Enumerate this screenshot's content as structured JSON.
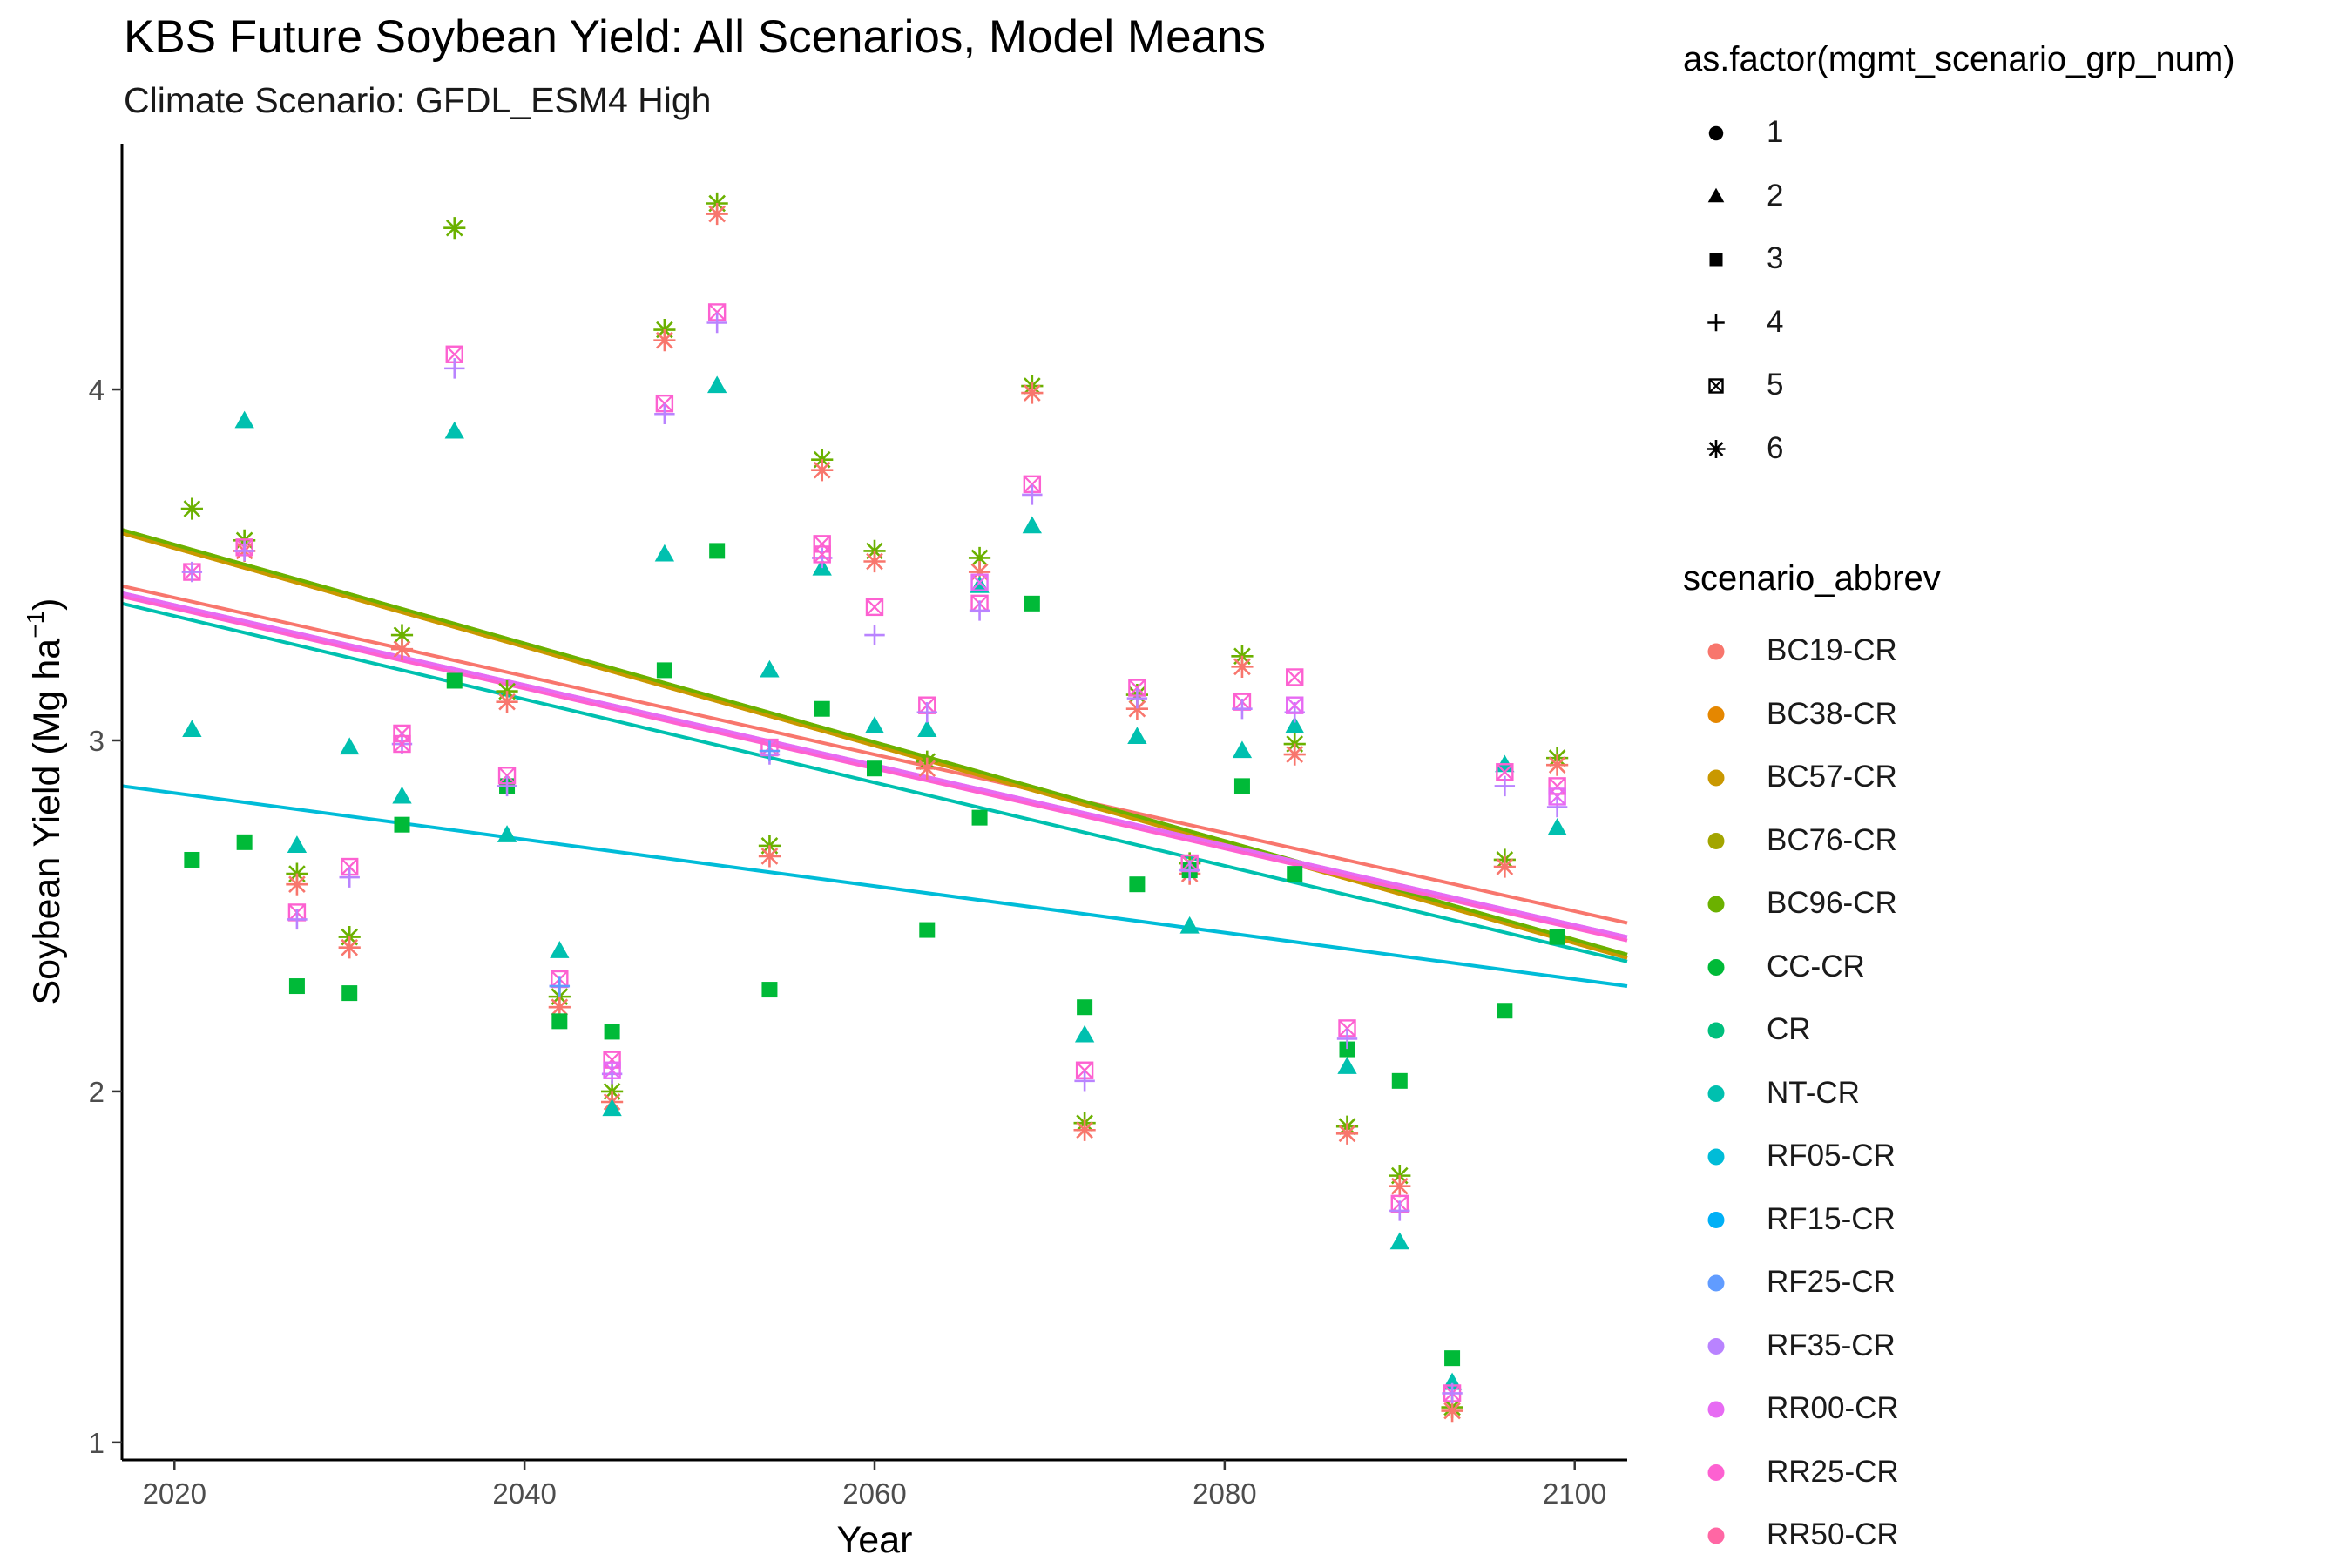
{
  "chart_data": {
    "type": "scatter",
    "title": "KBS  Future Soybean Yield: All Scenarios, Model Means",
    "subtitle": "Climate Scenario: GFDL_ESM4 High",
    "xlabel": "Year",
    "ylabel": "Soybean Yield (Mg ha",
    "ylabel_sup": "−1",
    "ylabel_close": ")",
    "xlim": [
      2017,
      2103
    ],
    "ylim": [
      0.95,
      4.7
    ],
    "xticks": [
      2020,
      2040,
      2060,
      2080,
      2100
    ],
    "yticks": [
      1,
      2,
      3,
      4
    ],
    "grid": false,
    "legend_position": "right",
    "shape_legend": {
      "title": "as.factor(mgmt_scenario_grp_num)",
      "items": [
        {
          "label": "1",
          "shape": "circle"
        },
        {
          "label": "2",
          "shape": "triangle"
        },
        {
          "label": "3",
          "shape": "square"
        },
        {
          "label": "4",
          "shape": "plus"
        },
        {
          "label": "5",
          "shape": "boxtimes"
        },
        {
          "label": "6",
          "shape": "asterisk"
        }
      ]
    },
    "color_legend": {
      "title": "scenario_abbrev",
      "items": [
        {
          "label": "BC19-CR",
          "color": "#F8766D"
        },
        {
          "label": "BC38-CR",
          "color": "#E58700"
        },
        {
          "label": "BC57-CR",
          "color": "#C99800"
        },
        {
          "label": "BC76-CR",
          "color": "#A3A500"
        },
        {
          "label": "BC96-CR",
          "color": "#6BB100"
        },
        {
          "label": "CC-CR",
          "color": "#00BA38"
        },
        {
          "label": "CR",
          "color": "#00BF7D"
        },
        {
          "label": "NT-CR",
          "color": "#00C0AF"
        },
        {
          "label": "RF05-CR",
          "color": "#00BCD8"
        },
        {
          "label": "RF15-CR",
          "color": "#00B0F6"
        },
        {
          "label": "RF25-CR",
          "color": "#619CFF"
        },
        {
          "label": "RF35-CR",
          "color": "#B983FF"
        },
        {
          "label": "RR00-CR",
          "color": "#E76BF3"
        },
        {
          "label": "RR25-CR",
          "color": "#FD61D1"
        },
        {
          "label": "RR50-CR",
          "color": "#FF67A4"
        }
      ]
    },
    "trend_lines": [
      {
        "scenario": "BC19-CR",
        "color": "#F8766D",
        "y_start": 3.44,
        "y_end": 2.48
      },
      {
        "scenario": "BC38-CR",
        "color": "#E58700",
        "y_start": 3.59,
        "y_end": 2.38
      },
      {
        "scenario": "BC57-CR",
        "color": "#C99800",
        "y_start": 3.59,
        "y_end": 2.38
      },
      {
        "scenario": "BC76-CR",
        "color": "#A3A500",
        "y_start": 3.6,
        "y_end": 2.39
      },
      {
        "scenario": "BC96-CR",
        "color": "#6BB100",
        "y_start": 3.6,
        "y_end": 2.39
      },
      {
        "scenario": "NT-CR",
        "color": "#00C0AF",
        "y_start": 3.39,
        "y_end": 2.37
      },
      {
        "scenario": "RF05-CR",
        "color": "#00BCD8",
        "y_start": 2.87,
        "y_end": 2.3
      },
      {
        "scenario": "RF35-CR",
        "color": "#B983FF",
        "y_start": 3.42,
        "y_end": 2.44
      },
      {
        "scenario": "RR00-CR",
        "color": "#E76BF3",
        "y_start": 3.42,
        "y_end": 2.44
      },
      {
        "scenario": "RR25-CR",
        "color": "#FD61D1",
        "y_start": 3.41,
        "y_end": 2.43
      }
    ],
    "trend_x": [
      2017,
      2103
    ],
    "years": [
      2021,
      2024,
      2027,
      2030,
      2033,
      2036,
      2039,
      2042,
      2045,
      2048,
      2051,
      2054,
      2057,
      2060,
      2063,
      2066,
      2069,
      2072,
      2075,
      2078,
      2081,
      2084,
      2087,
      2090,
      2093,
      2096,
      2099
    ],
    "series": [
      {
        "name": "BC96-CR",
        "scenario": "BC96-CR",
        "shape": "asterisk",
        "color": "#6BB100",
        "values": [
          3.66,
          3.57,
          2.62,
          2.44,
          3.3,
          4.46,
          3.14,
          2.27,
          2.0,
          4.17,
          4.53,
          2.7,
          3.8,
          3.54,
          2.94,
          3.52,
          4.01,
          1.91,
          3.13,
          2.65,
          3.24,
          2.99,
          1.9,
          1.76,
          1.1,
          2.66,
          2.95
        ]
      },
      {
        "name": "BC19-CR",
        "scenario": "BC19-CR",
        "shape": "asterisk",
        "color": "#F8766D",
        "values": [
          null,
          3.54,
          2.59,
          2.41,
          3.26,
          null,
          3.11,
          2.24,
          1.97,
          4.14,
          4.5,
          2.67,
          3.77,
          3.51,
          2.92,
          3.48,
          3.99,
          1.89,
          3.09,
          2.62,
          3.21,
          2.96,
          1.88,
          1.73,
          1.09,
          2.64,
          2.93
        ]
      },
      {
        "name": "NT-CR",
        "scenario": "NT-CR",
        "shape": "triangle",
        "color": "#00C0AF",
        "values": [
          3.03,
          3.91,
          2.7,
          2.98,
          2.84,
          3.88,
          2.73,
          2.4,
          1.95,
          3.53,
          4.01,
          3.2,
          3.49,
          3.04,
          3.03,
          3.44,
          3.61,
          2.16,
          3.01,
          2.47,
          2.97,
          3.04,
          2.07,
          1.57,
          1.17,
          2.93,
          2.75
        ]
      },
      {
        "name": "CC-CR",
        "scenario": "CC-CR",
        "shape": "square",
        "color": "#00BA38",
        "values": [
          2.66,
          2.71,
          2.3,
          2.28,
          2.76,
          3.17,
          2.87,
          2.2,
          2.17,
          3.2,
          3.54,
          2.29,
          3.09,
          2.92,
          2.46,
          2.78,
          3.39,
          2.24,
          2.59,
          2.63,
          2.87,
          2.62,
          2.12,
          2.03,
          1.24,
          2.23,
          2.44
        ]
      },
      {
        "name": "RR25-CR",
        "scenario": "RR25-CR",
        "shape": "boxtimes",
        "color": "#FD61D1",
        "values": [
          3.48,
          3.55,
          2.51,
          2.64,
          3.02,
          4.1,
          2.9,
          2.32,
          2.09,
          3.96,
          4.22,
          2.98,
          3.56,
          3.38,
          3.1,
          3.39,
          3.73,
          2.06,
          3.15,
          2.65,
          3.11,
          3.18,
          2.18,
          1.68,
          1.14,
          2.91,
          2.87
        ]
      },
      {
        "name": "RF35-CR",
        "scenario": "RF35-CR",
        "shape": "plus",
        "color": "#B983FF",
        "values": [
          3.48,
          3.54,
          2.49,
          2.61,
          2.99,
          4.06,
          2.87,
          2.3,
          2.05,
          3.93,
          4.19,
          2.96,
          3.52,
          3.3,
          3.08,
          3.37,
          3.7,
          2.03,
          3.12,
          2.63,
          3.09,
          3.08,
          2.15,
          1.66,
          1.14,
          2.87,
          2.81
        ]
      }
    ],
    "extra_points": [
      {
        "scenario": "RR00-CR",
        "shape": "boxtimes",
        "color": "#E76BF3",
        "x": 2084,
        "y": 3.1
      },
      {
        "scenario": "RR00-CR",
        "shape": "boxtimes",
        "color": "#E76BF3",
        "x": 2099,
        "y": 2.84
      },
      {
        "scenario": "RR00-CR",
        "shape": "boxtimes",
        "color": "#E76BF3",
        "x": 2066,
        "y": 3.45
      },
      {
        "scenario": "RR00-CR",
        "shape": "boxtimes",
        "color": "#E76BF3",
        "x": 2045,
        "y": 2.06
      },
      {
        "scenario": "RF25-CR",
        "shape": "plus",
        "color": "#619CFF",
        "x": 2042,
        "y": 2.3
      },
      {
        "scenario": "RF25-CR",
        "shape": "plus",
        "color": "#619CFF",
        "x": 2054,
        "y": 2.97
      },
      {
        "scenario": "RR25-CR",
        "shape": "boxtimes",
        "color": "#FD61D1",
        "x": 2033,
        "y": 2.99
      },
      {
        "scenario": "RR25-CR",
        "shape": "boxtimes",
        "color": "#FD61D1",
        "x": 2057,
        "y": 3.53
      }
    ]
  }
}
